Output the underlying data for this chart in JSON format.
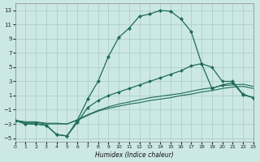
{
  "xlabel": "Humidex (Indice chaleur)",
  "bg_color": "#cce8e5",
  "grid_color": "#b0ceca",
  "line_color": "#1e6b5a",
  "xlim": [
    0,
    23
  ],
  "ylim": [
    -5.5,
    14.0
  ],
  "xticks": [
    0,
    1,
    2,
    3,
    4,
    5,
    6,
    7,
    8,
    9,
    10,
    11,
    12,
    13,
    14,
    15,
    16,
    17,
    18,
    19,
    20,
    21,
    22,
    23
  ],
  "yticks": [
    -5,
    -3,
    -1,
    1,
    3,
    5,
    7,
    9,
    11,
    13
  ],
  "curve1_x": [
    0,
    1,
    2,
    3,
    4,
    5,
    6,
    7,
    8,
    9,
    10,
    11,
    12,
    13,
    14,
    15,
    16,
    17,
    18,
    19,
    20,
    21,
    22,
    23
  ],
  "curve1_y": [
    -2.5,
    -3.0,
    -3.0,
    -3.2,
    -4.5,
    -4.7,
    -2.5,
    0.5,
    3.0,
    6.5,
    9.2,
    10.5,
    12.2,
    12.5,
    13.0,
    12.9,
    11.8,
    10.0,
    5.5,
    2.0,
    2.5,
    2.8,
    1.1,
    0.7
  ],
  "curve2_x": [
    0,
    1,
    2,
    3,
    4,
    5,
    6,
    7,
    8,
    9,
    10,
    11,
    12,
    13,
    14,
    15,
    16,
    17,
    18,
    19,
    20,
    21,
    22,
    23
  ],
  "curve2_y": [
    -2.5,
    -3.0,
    -3.0,
    -3.2,
    -4.5,
    -4.7,
    -2.8,
    -0.7,
    0.3,
    1.0,
    1.5,
    2.0,
    2.5,
    3.0,
    3.5,
    4.0,
    4.5,
    5.2,
    5.5,
    5.0,
    3.0,
    3.0,
    1.2,
    0.7
  ],
  "curve3_x": [
    0,
    1,
    2,
    3,
    4,
    5,
    6,
    7,
    8,
    9,
    10,
    11,
    12,
    13,
    14,
    15,
    16,
    17,
    18,
    19,
    20,
    21,
    22,
    23
  ],
  "curve3_y": [
    -2.5,
    -2.8,
    -2.8,
    -3.0,
    -3.0,
    -3.0,
    -2.5,
    -1.8,
    -1.2,
    -0.8,
    -0.5,
    -0.2,
    0.0,
    0.3,
    0.5,
    0.7,
    1.0,
    1.2,
    1.5,
    1.7,
    2.0,
    2.2,
    2.3,
    2.0
  ],
  "curve4_x": [
    0,
    1,
    2,
    3,
    4,
    5,
    6,
    7,
    8,
    9,
    10,
    11,
    12,
    13,
    14,
    15,
    16,
    17,
    18,
    19,
    20,
    21,
    22,
    23
  ],
  "curve4_y": [
    -2.5,
    -2.7,
    -2.7,
    -2.9,
    -2.9,
    -3.0,
    -2.4,
    -1.7,
    -1.1,
    -0.6,
    -0.2,
    0.1,
    0.4,
    0.7,
    0.9,
    1.1,
    1.3,
    1.6,
    1.9,
    2.1,
    2.4,
    2.5,
    2.6,
    2.3
  ]
}
